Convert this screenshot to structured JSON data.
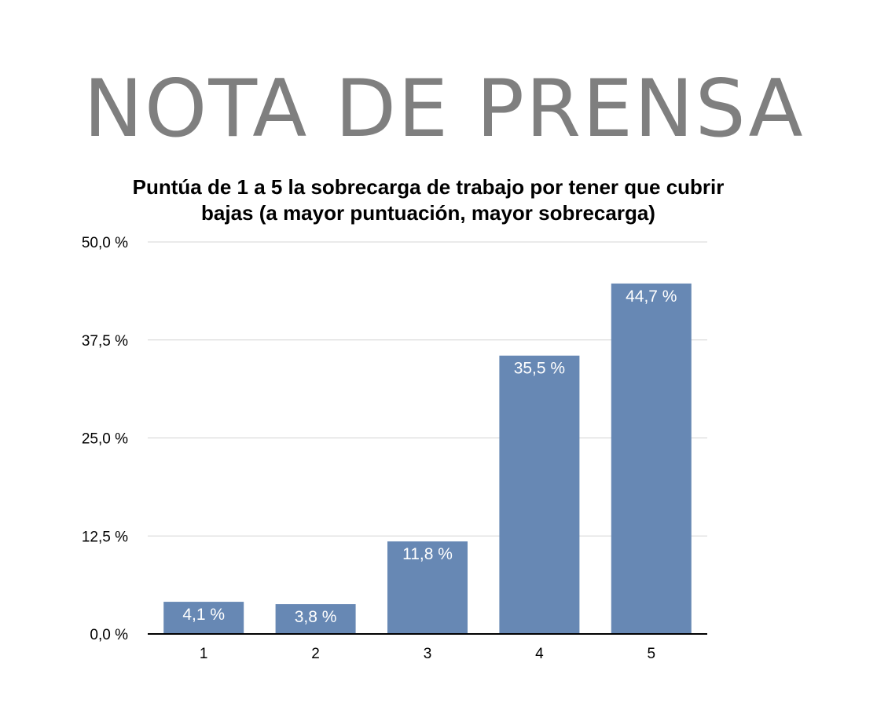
{
  "header": {
    "title": "NOTA DE PRENSA"
  },
  "chart_data": {
    "type": "bar",
    "title": "Puntúa de 1 a 5 la sobrecarga de trabajo por tener que cubrir bajas (a mayor puntuación, mayor sobrecarga)",
    "categories": [
      "1",
      "2",
      "3",
      "4",
      "5"
    ],
    "values": [
      4.1,
      3.8,
      11.8,
      35.5,
      44.7
    ],
    "data_labels": [
      "4,1 %",
      "3,8 %",
      "11,8 %",
      "35,5 %",
      "44,7 %"
    ],
    "yticks": [
      0,
      12.5,
      25,
      37.5,
      50
    ],
    "ytick_labels": [
      "0,0 %",
      "12,5 %",
      "25,0 %",
      "37,5 %",
      "50,0 %"
    ],
    "ylim": [
      0,
      50
    ],
    "xlabel": "",
    "ylabel": "",
    "grid": true,
    "legend": "none",
    "bar_color": "#6788b4"
  }
}
